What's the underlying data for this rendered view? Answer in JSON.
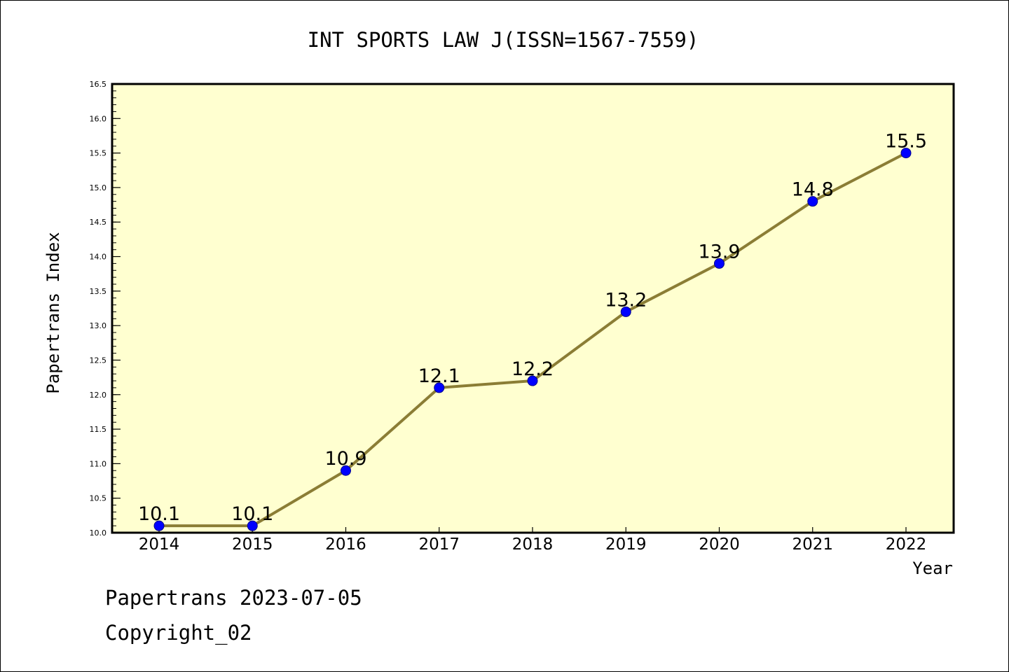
{
  "chart_data": {
    "type": "line",
    "title": "INT SPORTS LAW J(ISSN=1567-7559)",
    "xlabel": "Year",
    "ylabel": "Papertrans Index",
    "x": [
      "2014",
      "2015",
      "2016",
      "2017",
      "2018",
      "2019",
      "2020",
      "2021",
      "2022"
    ],
    "series": [
      {
        "values": [
          10.1,
          10.1,
          10.9,
          12.1,
          12.2,
          13.2,
          13.9,
          14.8,
          15.5
        ]
      }
    ],
    "data_labels": [
      "10.1",
      "10.1",
      "10.9",
      "12.1",
      "12.2",
      "13.2",
      "13.9",
      "14.8",
      "15.5"
    ],
    "ylim": [
      10.0,
      16.5
    ],
    "yticks": [
      "10.0",
      "10.5",
      "11.0",
      "11.5",
      "12.0",
      "12.5",
      "13.0",
      "13.5",
      "14.0",
      "14.5",
      "15.0",
      "15.5",
      "16.0",
      "16.5"
    ],
    "grid": false,
    "colors": {
      "plot_background": "#ffffd0",
      "line": "#8b7d35",
      "marker": "#0000ff",
      "marker_edge": "#00008b"
    }
  },
  "footer": {
    "line1": "Papertrans 2023-07-05",
    "line2": "Copyright_02"
  }
}
